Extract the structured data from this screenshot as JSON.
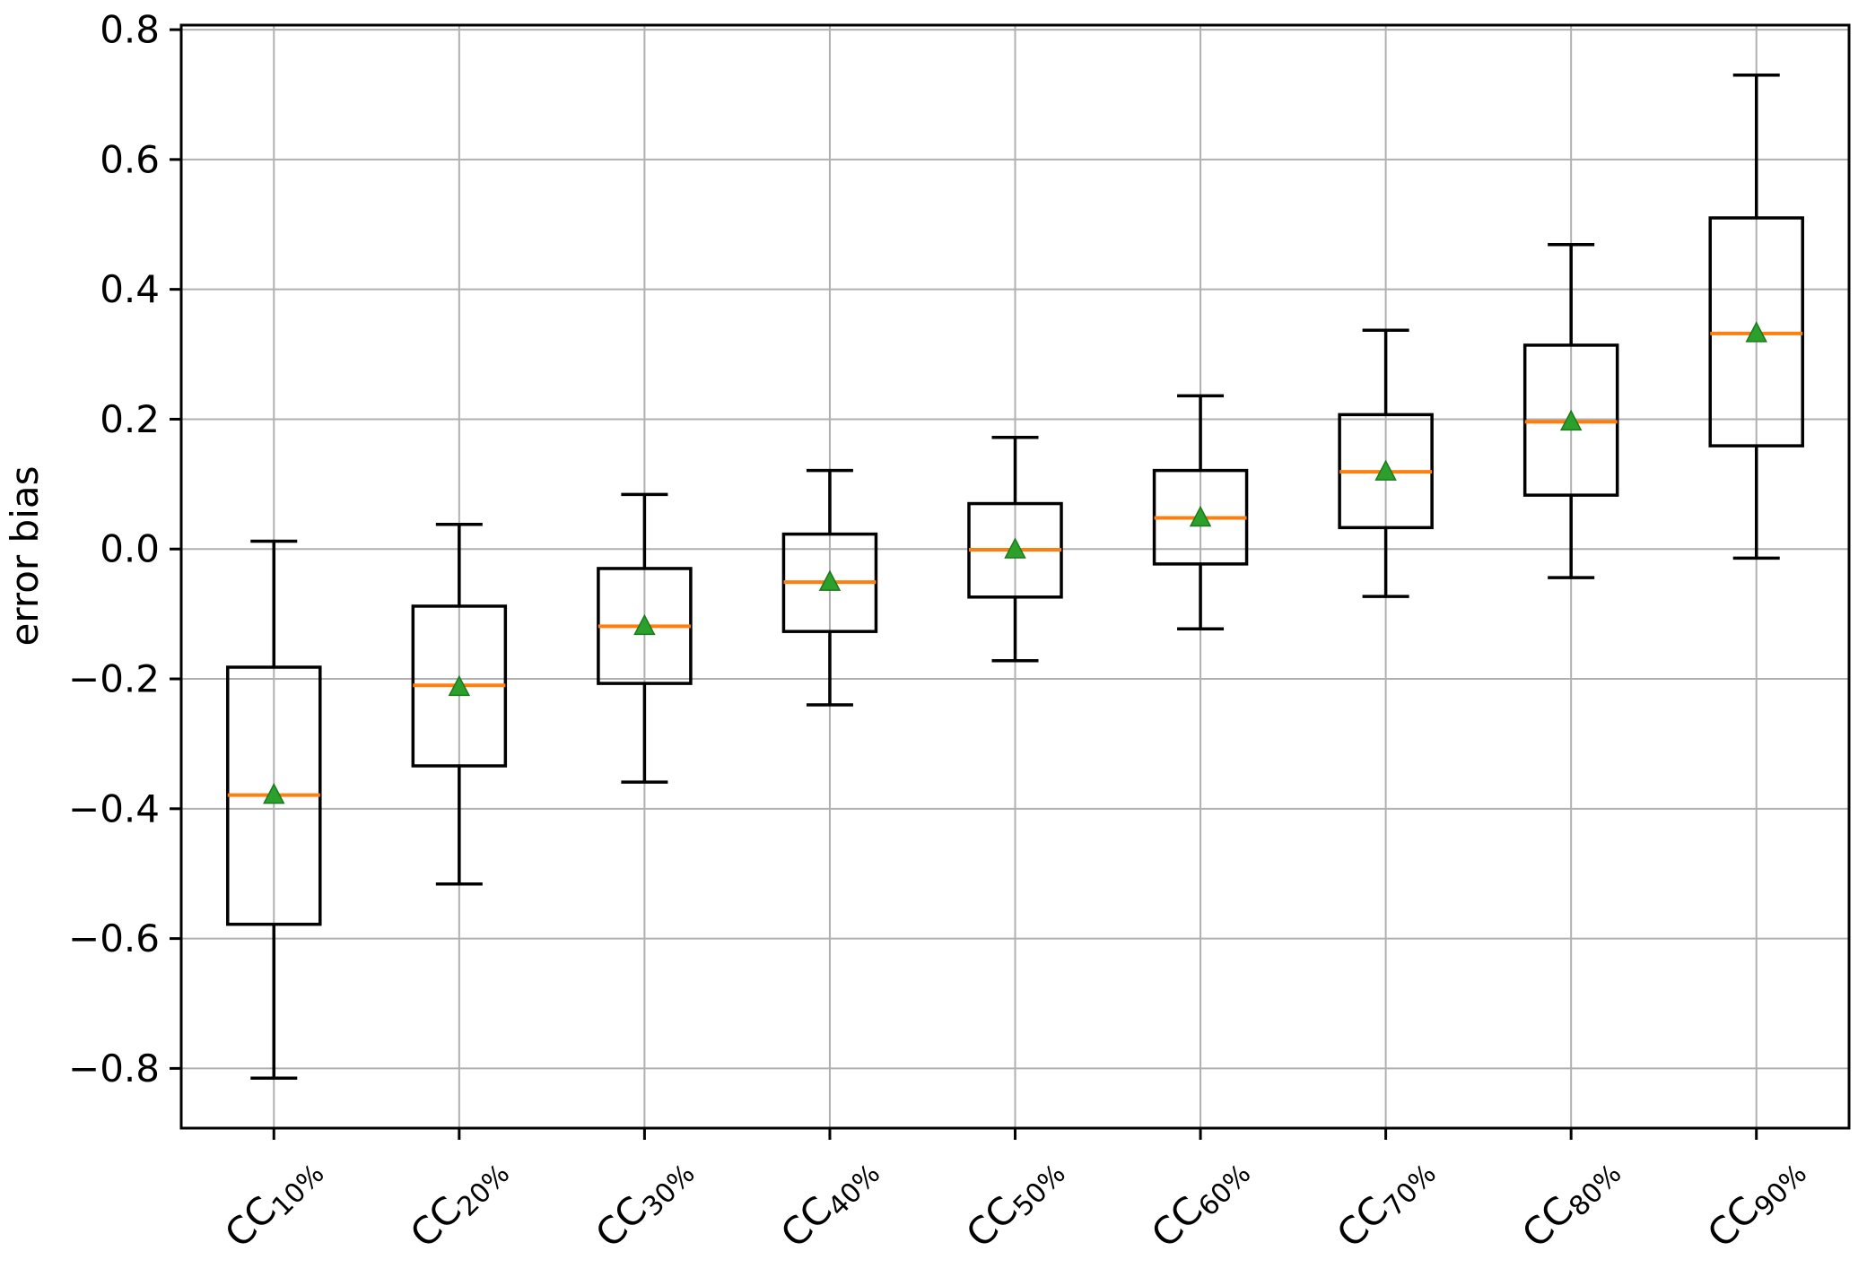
{
  "chart_data": {
    "type": "boxplot",
    "title": "",
    "xlabel": "",
    "ylabel": "error bias",
    "ylim": [
      -0.892,
      0.807
    ],
    "grid": true,
    "legend_position": "none",
    "mean_marker": "triangle-up",
    "yticks": [
      {
        "value": 0.8,
        "label": "0.8"
      },
      {
        "value": 0.6,
        "label": "0.6"
      },
      {
        "value": 0.4,
        "label": "0.4"
      },
      {
        "value": 0.2,
        "label": "0.2"
      },
      {
        "value": 0.0,
        "label": "0.0"
      },
      {
        "value": -0.2,
        "label": "−0.2"
      },
      {
        "value": -0.4,
        "label": "−0.4"
      },
      {
        "value": -0.6,
        "label": "−0.6"
      },
      {
        "value": -0.8,
        "label": "−0.8"
      }
    ],
    "categories": [
      {
        "main": "CC",
        "sub": "10%"
      },
      {
        "main": "CC",
        "sub": "20%"
      },
      {
        "main": "CC",
        "sub": "30%"
      },
      {
        "main": "CC",
        "sub": "40%"
      },
      {
        "main": "CC",
        "sub": "50%"
      },
      {
        "main": "CC",
        "sub": "60%"
      },
      {
        "main": "CC",
        "sub": "70%"
      },
      {
        "main": "CC",
        "sub": "80%"
      },
      {
        "main": "CC",
        "sub": "90%"
      }
    ],
    "boxes": [
      {
        "label": "CC10%",
        "whisker_low": -0.815,
        "q1": -0.578,
        "median": -0.379,
        "mean": -0.379,
        "q3": -0.182,
        "whisker_high": 0.012
      },
      {
        "label": "CC20%",
        "whisker_low": -0.516,
        "q1": -0.334,
        "median": -0.21,
        "mean": -0.213,
        "q3": -0.088,
        "whisker_high": 0.038
      },
      {
        "label": "CC30%",
        "whisker_low": -0.359,
        "q1": -0.207,
        "median": -0.119,
        "mean": -0.119,
        "q3": -0.03,
        "whisker_high": 0.084
      },
      {
        "label": "CC40%",
        "whisker_low": -0.24,
        "q1": -0.127,
        "median": -0.051,
        "mean": -0.051,
        "q3": 0.023,
        "whisker_high": 0.121
      },
      {
        "label": "CC50%",
        "whisker_low": -0.172,
        "q1": -0.074,
        "median": -0.001,
        "mean": -0.001,
        "q3": 0.07,
        "whisker_high": 0.172
      },
      {
        "label": "CC60%",
        "whisker_low": -0.123,
        "q1": -0.023,
        "median": 0.048,
        "mean": 0.048,
        "q3": 0.121,
        "whisker_high": 0.236
      },
      {
        "label": "CC70%",
        "whisker_low": -0.073,
        "q1": 0.033,
        "median": 0.119,
        "mean": 0.119,
        "q3": 0.207,
        "whisker_high": 0.337
      },
      {
        "label": "CC80%",
        "whisker_low": -0.044,
        "q1": 0.083,
        "median": 0.196,
        "mean": 0.196,
        "q3": 0.314,
        "whisker_high": 0.469
      },
      {
        "label": "CC90%",
        "whisker_low": -0.014,
        "q1": 0.159,
        "median": 0.332,
        "mean": 0.332,
        "q3": 0.51,
        "whisker_high": 0.73
      }
    ],
    "colors": {
      "box_line": "#000000",
      "median": "#ff7f0e",
      "mean_fill": "#2ca02c",
      "mean_edge": "#1a7a1a",
      "grid": "#b0b0b0",
      "background": "#ffffff"
    }
  }
}
